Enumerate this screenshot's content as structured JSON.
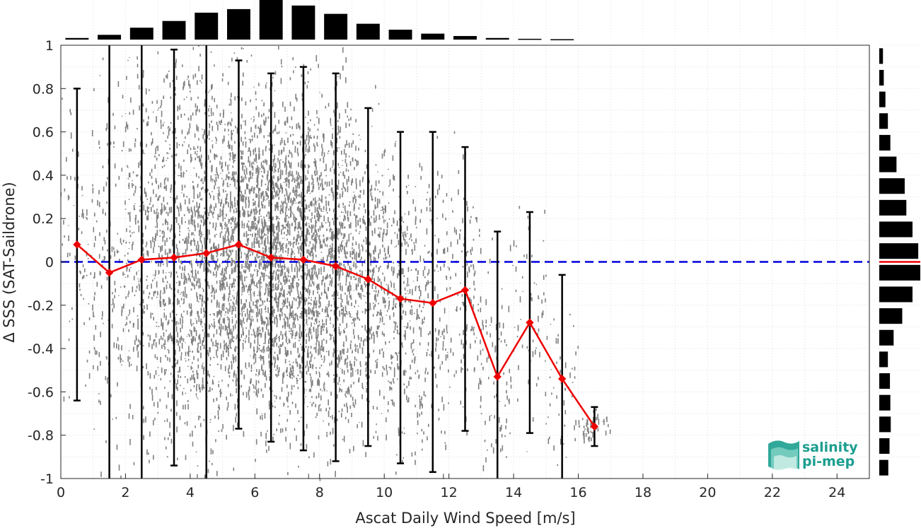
{
  "chart_data": {
    "type": "scatter",
    "xlabel": "Ascat Daily Wind Speed [m/s]",
    "ylabel": "Δ SSS (SAT-Saildrone)",
    "xlim": [
      0,
      25
    ],
    "ylim": [
      -1,
      1
    ],
    "x_ticks": [
      0,
      2,
      4,
      6,
      8,
      10,
      12,
      14,
      16,
      18,
      20,
      22,
      24
    ],
    "y_ticks": [
      1,
      0.8,
      0.6,
      0.4,
      0.2,
      0,
      -0.2,
      -0.4,
      -0.6,
      -0.8,
      -1
    ],
    "grid": true,
    "scatter_color": "#808080",
    "scatter_note": "dense gray point cloud of individual collocations, concentrated between 2 and 12 m/s",
    "reference_line": {
      "y": 0,
      "color": "#0000dd",
      "style": "dashed"
    },
    "binned_mean": {
      "color": "#ee0000",
      "x": [
        0.5,
        1.5,
        2.5,
        3.5,
        4.5,
        5.5,
        6.5,
        7.5,
        8.5,
        9.5,
        10.5,
        11.5,
        12.5,
        13.5,
        14.5,
        15.5,
        16.5
      ],
      "y": [
        0.08,
        -0.05,
        0.01,
        0.02,
        0.04,
        0.08,
        0.02,
        0.01,
        -0.02,
        -0.08,
        -0.17,
        -0.19,
        -0.13,
        -0.53,
        -0.28,
        -0.54,
        -0.76
      ],
      "err_low": [
        -0.64,
        -1.0,
        -1.0,
        -0.94,
        -1.0,
        -0.77,
        -0.83,
        -0.87,
        -0.92,
        -0.85,
        -0.93,
        -0.97,
        -0.78,
        -1.0,
        -0.79,
        -1.0,
        -0.85
      ],
      "err_high": [
        0.8,
        1.0,
        1.0,
        0.98,
        1.0,
        0.93,
        0.87,
        0.9,
        0.87,
        0.71,
        0.6,
        0.6,
        0.53,
        0.14,
        0.23,
        -0.06,
        -0.67
      ]
    },
    "top_histogram": {
      "bin_centers": [
        0.5,
        1.5,
        2.5,
        3.5,
        4.5,
        5.5,
        6.5,
        7.5,
        8.5,
        9.5,
        10.5,
        11.5,
        12.5,
        13.5,
        14.5,
        15.5
      ],
      "values": [
        0.04,
        0.12,
        0.3,
        0.47,
        0.68,
        0.77,
        1.0,
        0.86,
        0.65,
        0.4,
        0.25,
        0.15,
        0.09,
        0.04,
        0.02,
        0.01
      ]
    },
    "right_histogram": {
      "bin_centers": [
        0.95,
        0.85,
        0.75,
        0.65,
        0.55,
        0.45,
        0.35,
        0.25,
        0.15,
        0.05,
        -0.05,
        -0.15,
        -0.25,
        -0.35,
        -0.45,
        -0.55,
        -0.65,
        -0.75,
        -0.85,
        -0.95
      ],
      "values": [
        0.09,
        0.11,
        0.15,
        0.21,
        0.27,
        0.42,
        0.62,
        0.66,
        0.81,
        0.95,
        1.0,
        0.81,
        0.56,
        0.35,
        0.21,
        0.26,
        0.27,
        0.28,
        0.25,
        0.22
      ],
      "zero_line_color": "#ee0000"
    }
  },
  "logo": {
    "line1": "salinity",
    "line2": "pi-mep",
    "color": "#1b9e8f"
  }
}
